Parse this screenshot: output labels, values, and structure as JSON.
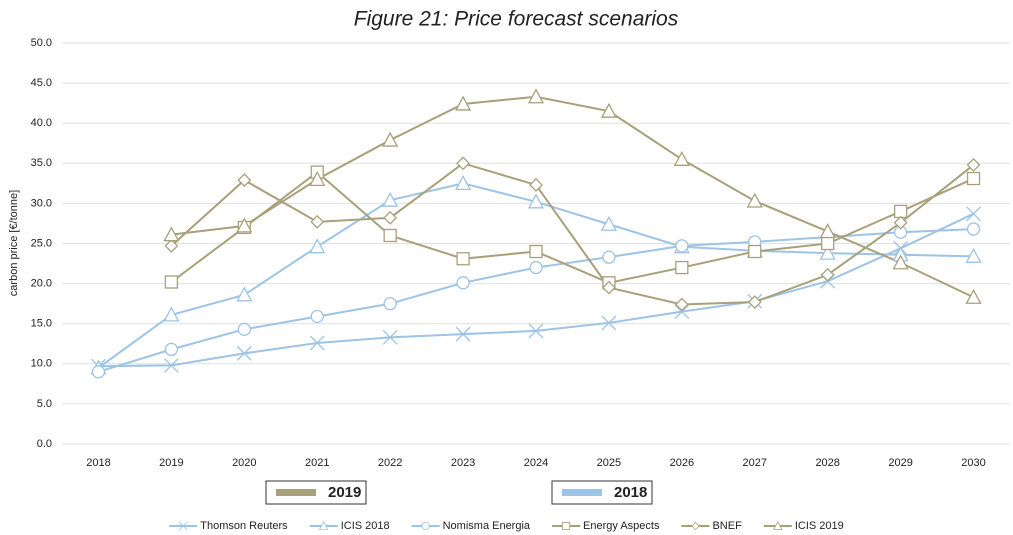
{
  "chart_data": {
    "type": "line",
    "title": "Figure 21: Price forecast scenarios",
    "y_label": "carbon price [€/tonne]",
    "categories": [
      "2018",
      "2019",
      "2020",
      "2021",
      "2022",
      "2023",
      "2024",
      "2025",
      "2026",
      "2027",
      "2028",
      "2029",
      "2030"
    ],
    "ylim": [
      0,
      50
    ],
    "yticks": [
      {
        "value": 0,
        "label": "0.0"
      },
      {
        "value": 5,
        "label": "5.0"
      },
      {
        "value": 10,
        "label": "10.0"
      },
      {
        "value": 15,
        "label": "15.0"
      },
      {
        "value": 20,
        "label": "20.0"
      },
      {
        "value": 25,
        "label": "25.0"
      },
      {
        "value": 30,
        "label": "30.0"
      },
      {
        "value": 35,
        "label": "35.0"
      },
      {
        "value": 40,
        "label": "40.0"
      },
      {
        "value": 45,
        "label": "45.0"
      },
      {
        "value": 50,
        "label": "50.0"
      }
    ],
    "grid": true,
    "series": [
      {
        "name": "Thomson Reuters",
        "color": "#9dc3e6",
        "marker": "x",
        "values": [
          9.7,
          9.8,
          11.3,
          12.6,
          13.3,
          13.7,
          14.1,
          15.1,
          16.5,
          17.8,
          20.3,
          24.4,
          28.7
        ]
      },
      {
        "name": "ICIS 2018",
        "color": "#9dc3e6",
        "marker": "triangle",
        "values": [
          9.5,
          16.1,
          18.6,
          24.6,
          30.4,
          32.5,
          30.2,
          27.4,
          24.6,
          24.1,
          23.8,
          23.6,
          23.4
        ]
      },
      {
        "name": "Nomisma Energia",
        "color": "#9dc3e6",
        "marker": "circle",
        "values": [
          9.0,
          11.8,
          14.3,
          15.9,
          17.5,
          20.1,
          22.0,
          23.3,
          24.7,
          25.2,
          25.8,
          26.4,
          26.8
        ]
      },
      {
        "name": "Energy Aspects",
        "color": "#a8a07a",
        "marker": "square",
        "values": [
          null,
          20.2,
          27.0,
          33.9,
          26.0,
          23.1,
          24.0,
          20.1,
          22.0,
          24.0,
          25.0,
          29.0,
          33.1
        ]
      },
      {
        "name": "BNEF",
        "color": "#a8a07a",
        "marker": "diamond",
        "values": [
          null,
          24.7,
          32.9,
          27.7,
          28.2,
          35.0,
          32.3,
          19.5,
          17.4,
          17.7,
          21.1,
          27.6,
          34.8
        ]
      },
      {
        "name": "ICIS 2019",
        "color": "#a8a07a",
        "marker": "triangle",
        "values": [
          null,
          26.1,
          27.2,
          33.0,
          37.9,
          42.4,
          43.3,
          41.5,
          35.5,
          30.3,
          26.5,
          22.6,
          18.3
        ]
      }
    ],
    "group_legend": [
      {
        "label": "2019",
        "color": "#a8a07a"
      },
      {
        "label": "2018",
        "color": "#9dc3e6"
      }
    ]
  }
}
